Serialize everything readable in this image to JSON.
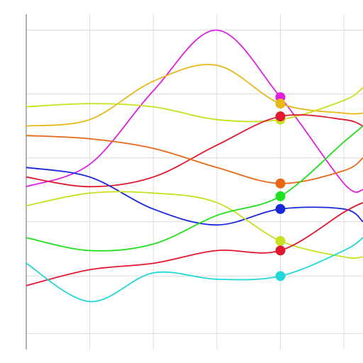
{
  "chart_data": {
    "type": "line",
    "title": "",
    "xlabel": "",
    "ylabel": "",
    "xlim": [
      0,
      5.3
    ],
    "ylim": [
      0,
      10.5
    ],
    "x_grid": [
      0,
      1,
      2,
      3,
      4,
      5
    ],
    "y_grid": [
      0.5,
      2.3,
      4.0,
      6.0,
      8.0,
      10.0
    ],
    "grid": true,
    "legend": "none",
    "highlight_x": 4,
    "series": [
      {
        "color": "#e01ee0",
        "points": [
          [
            0,
            5.1
          ],
          [
            1,
            5.8
          ],
          [
            2,
            8.1
          ],
          [
            3,
            10.0
          ],
          [
            4,
            7.9
          ],
          [
            5,
            5.2
          ],
          [
            5.3,
            5.0
          ]
        ]
      },
      {
        "color": "#e8b818",
        "points": [
          [
            0,
            7.0
          ],
          [
            1,
            7.2
          ],
          [
            2,
            8.4
          ],
          [
            3,
            8.9
          ],
          [
            4,
            7.7
          ],
          [
            5,
            7.4
          ],
          [
            5.3,
            7.4
          ]
        ]
      },
      {
        "color": "#c8e020",
        "points": [
          [
            0,
            7.6
          ],
          [
            1,
            7.7
          ],
          [
            2,
            7.6
          ],
          [
            3,
            7.2
          ],
          [
            4,
            7.2
          ],
          [
            5,
            7.8
          ],
          [
            5.3,
            8.2
          ]
        ]
      },
      {
        "color": "#e01830",
        "points": [
          [
            0,
            5.4
          ],
          [
            1,
            5.1
          ],
          [
            2,
            5.4
          ],
          [
            3,
            6.4
          ],
          [
            4,
            7.3
          ],
          [
            5,
            7.2
          ],
          [
            5.3,
            7.0
          ]
        ]
      },
      {
        "color": "#e86818",
        "points": [
          [
            0,
            6.7
          ],
          [
            1,
            6.6
          ],
          [
            2,
            6.3
          ],
          [
            3,
            5.7
          ],
          [
            4,
            5.2
          ],
          [
            5,
            5.6
          ],
          [
            5.3,
            6.0
          ]
        ]
      },
      {
        "color": "#1828d8",
        "points": [
          [
            0,
            5.7
          ],
          [
            1,
            5.4
          ],
          [
            2,
            4.4
          ],
          [
            3,
            3.9
          ],
          [
            4,
            4.4
          ],
          [
            5,
            4.4
          ],
          [
            5.3,
            4.0
          ]
        ]
      },
      {
        "color": "#c8e020",
        "points": [
          [
            0,
            4.5
          ],
          [
            1,
            4.9
          ],
          [
            2,
            4.9
          ],
          [
            3,
            4.6
          ],
          [
            4,
            3.4
          ],
          [
            5,
            2.9
          ],
          [
            5.3,
            2.9
          ]
        ]
      },
      {
        "color": "#20e020",
        "points": [
          [
            0,
            3.5
          ],
          [
            1,
            3.1
          ],
          [
            2,
            3.3
          ],
          [
            3,
            4.2
          ],
          [
            4,
            4.8
          ],
          [
            5,
            6.5
          ],
          [
            5.3,
            7.0
          ]
        ]
      },
      {
        "color": "#e01830",
        "points": [
          [
            0,
            2.0
          ],
          [
            1,
            2.5
          ],
          [
            2,
            2.7
          ],
          [
            3,
            3.1
          ],
          [
            4,
            3.1
          ],
          [
            5,
            4.3
          ],
          [
            5.3,
            4.6
          ]
        ]
      },
      {
        "color": "#20d8d8",
        "points": [
          [
            0,
            2.7
          ],
          [
            1,
            1.5
          ],
          [
            2,
            2.4
          ],
          [
            3,
            2.2
          ],
          [
            4,
            2.3
          ],
          [
            5,
            3.1
          ],
          [
            5.3,
            3.5
          ]
        ]
      }
    ]
  }
}
